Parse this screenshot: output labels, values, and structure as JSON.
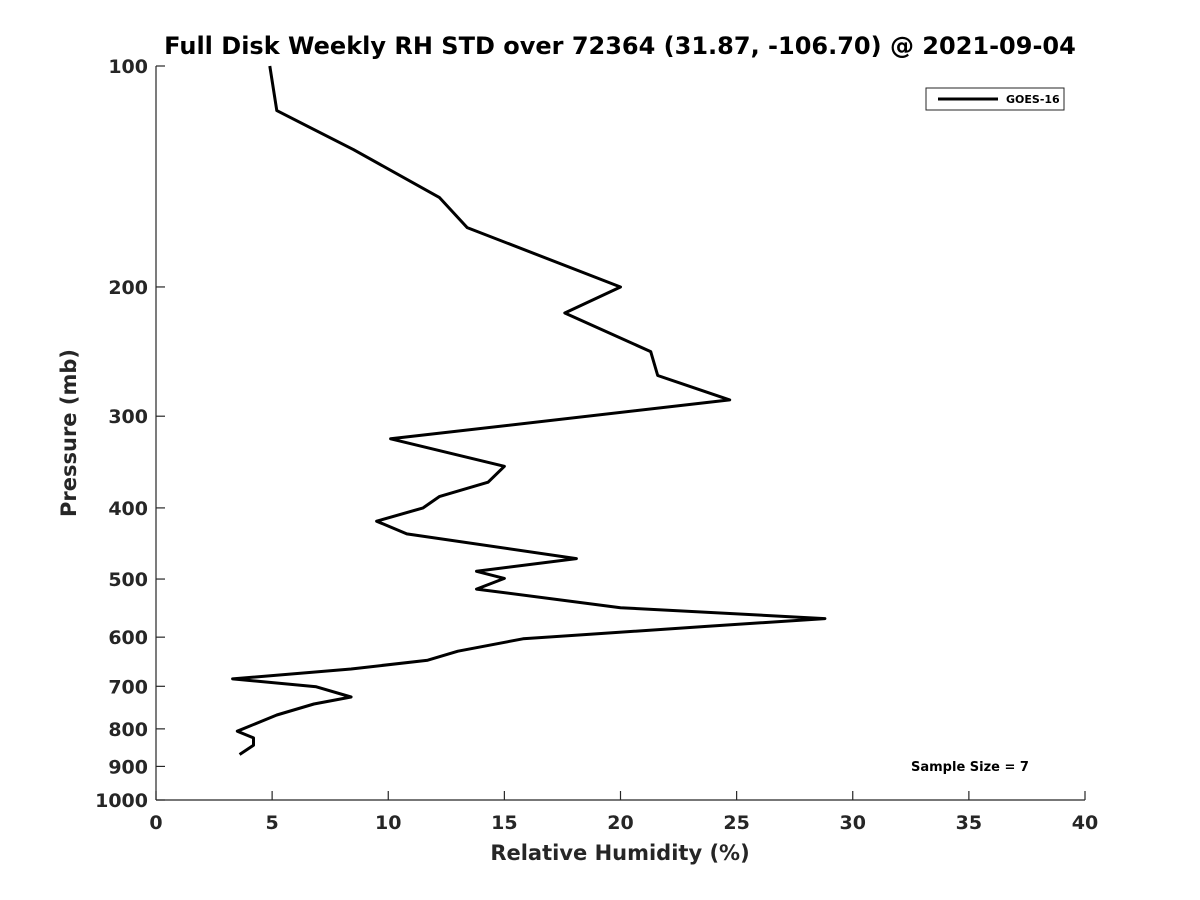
{
  "chart_data": {
    "type": "line",
    "title": "Full Disk Weekly RH STD over 72364 (31.87, -106.70) @ 2021-09-04",
    "xlabel": "Relative Humidity (%)",
    "ylabel": "Pressure (mb)",
    "xlim": [
      0,
      40
    ],
    "ylim": [
      100,
      1000
    ],
    "yscale": "log",
    "y_reversed": true,
    "xticks": [
      0,
      5,
      10,
      15,
      20,
      25,
      30,
      35,
      40
    ],
    "xtick_labels": [
      "0",
      "5",
      "10",
      "15",
      "20",
      "25",
      "30",
      "35",
      "40"
    ],
    "yticks": [
      100,
      200,
      300,
      400,
      500,
      600,
      700,
      800,
      900,
      1000
    ],
    "ytick_labels": [
      "100",
      "200",
      "300",
      "400",
      "500",
      "600",
      "700",
      "800",
      "900",
      "1000"
    ],
    "grid": false,
    "legend_position": "top-right",
    "series": [
      {
        "name": "GOES-16",
        "color": "#000000",
        "x": [
          4.9,
          5.2,
          8.5,
          12.2,
          13.4,
          20.0,
          17.6,
          21.3,
          21.6,
          24.7,
          10.1,
          15.0,
          14.3,
          12.2,
          11.5,
          9.5,
          10.8,
          18.1,
          13.8,
          15.0,
          13.8,
          20.0,
          28.8,
          23.7,
          15.8,
          13.0,
          11.7,
          8.4,
          3.3,
          6.9,
          8.4,
          6.8,
          5.2,
          3.5,
          4.2,
          4.2,
          3.6
        ],
        "y": [
          100,
          115,
          130,
          151,
          166,
          200,
          217,
          245,
          264,
          285,
          322,
          351,
          369,
          386,
          400,
          417,
          434,
          469,
          488,
          499,
          516,
          547,
          566,
          580,
          603,
          627,
          645,
          663,
          684,
          701,
          724,
          740,
          766,
          806,
          823,
          842,
          867
        ]
      }
    ],
    "annotations": [
      {
        "text": "Sample Size = 7",
        "position": "bottom-right"
      }
    ]
  }
}
